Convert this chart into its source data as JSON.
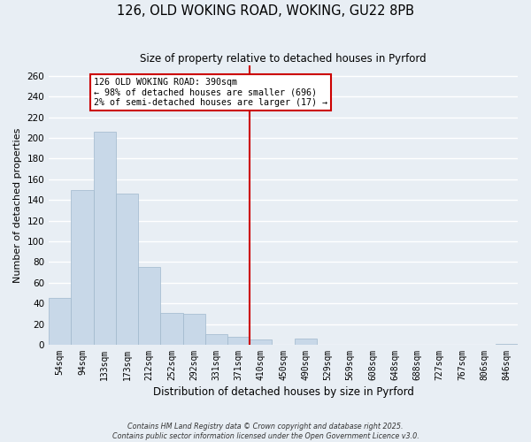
{
  "title": "126, OLD WOKING ROAD, WOKING, GU22 8PB",
  "subtitle": "Size of property relative to detached houses in Pyrford",
  "xlabel": "Distribution of detached houses by size in Pyrford",
  "ylabel": "Number of detached properties",
  "footer_lines": [
    "Contains HM Land Registry data © Crown copyright and database right 2025.",
    "Contains public sector information licensed under the Open Government Licence v3.0."
  ],
  "categories": [
    "54sqm",
    "94sqm",
    "133sqm",
    "173sqm",
    "212sqm",
    "252sqm",
    "292sqm",
    "331sqm",
    "371sqm",
    "410sqm",
    "450sqm",
    "490sqm",
    "529sqm",
    "569sqm",
    "608sqm",
    "648sqm",
    "688sqm",
    "727sqm",
    "767sqm",
    "806sqm",
    "846sqm"
  ],
  "values": [
    45,
    150,
    206,
    146,
    75,
    31,
    30,
    10,
    8,
    5,
    0,
    6,
    0,
    0,
    0,
    0,
    0,
    0,
    0,
    0,
    1
  ],
  "bar_color": "#c8d8e8",
  "bar_edge_color": "#a0b8cc",
  "vline_x": 8.5,
  "vline_color": "#cc0000",
  "annotation_title": "126 OLD WOKING ROAD: 390sqm",
  "annotation_line1": "← 98% of detached houses are smaller (696)",
  "annotation_line2": "2% of semi-detached houses are larger (17) →",
  "annotation_box_color": "#ffffff",
  "annotation_border_color": "#cc0000",
  "ylim": [
    0,
    270
  ],
  "yticks": [
    0,
    20,
    40,
    60,
    80,
    100,
    120,
    140,
    160,
    180,
    200,
    220,
    240,
    260
  ],
  "background_color": "#e8eef4",
  "grid_color": "#ffffff",
  "title_fontsize": 10.5,
  "subtitle_fontsize": 8.5
}
